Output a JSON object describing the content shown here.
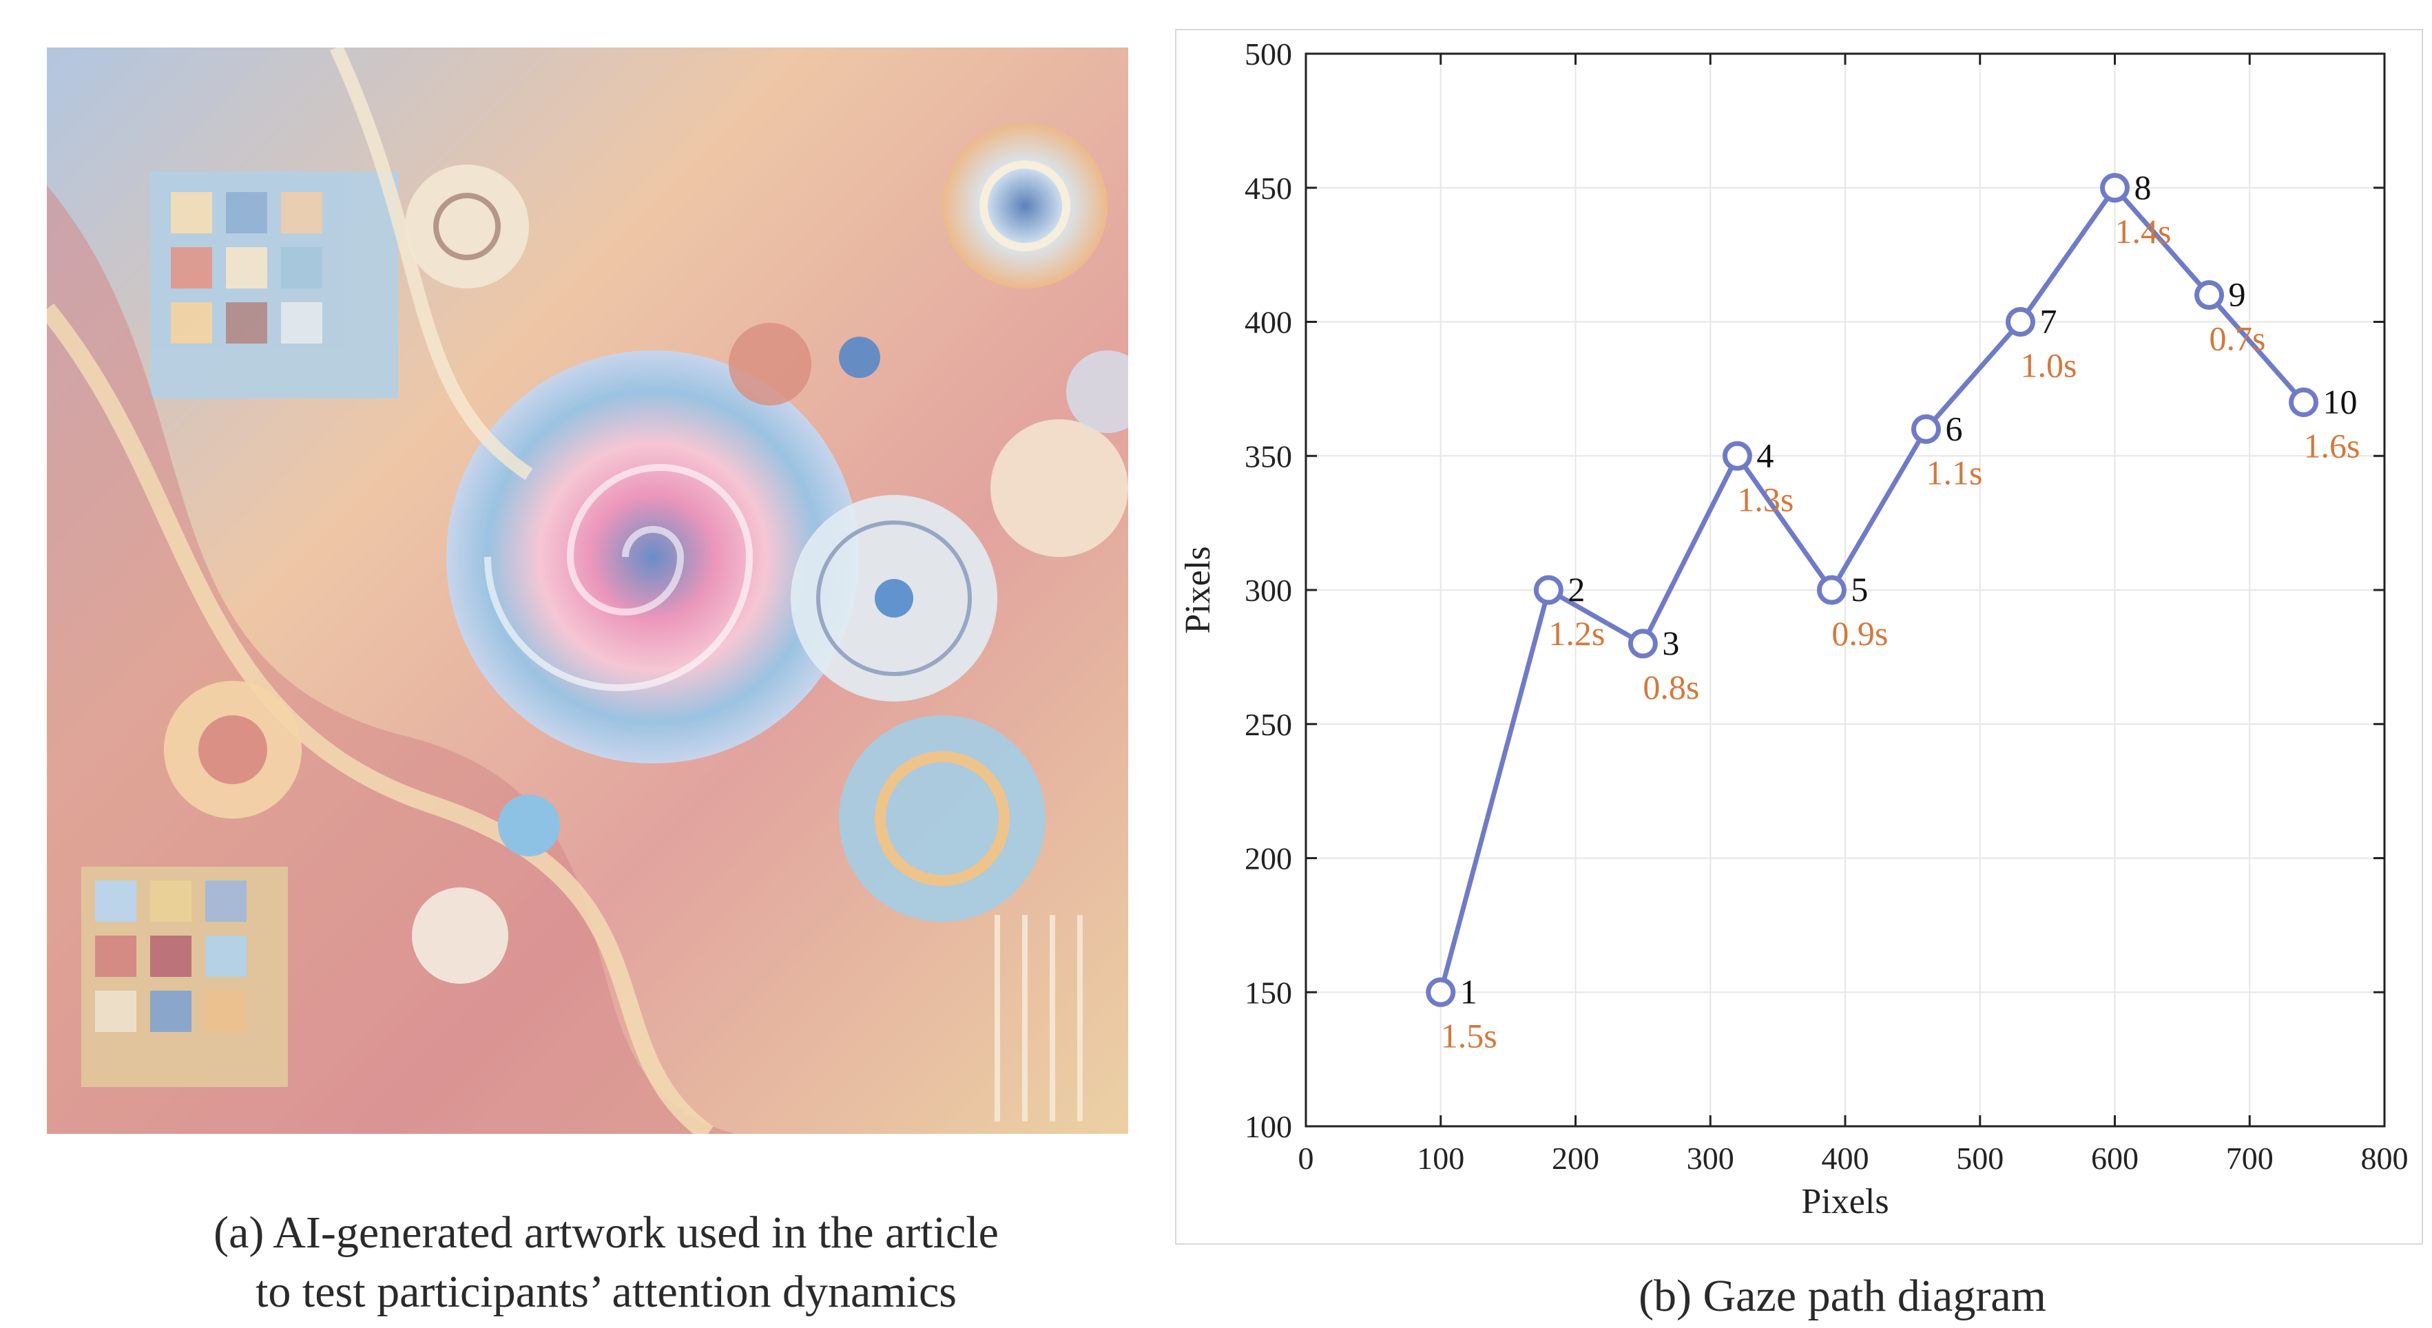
{
  "captions": {
    "a_line1": "(a) AI-generated artwork used in the article",
    "a_line2": "to test participants’ attention dynamics",
    "b": "(b) Gaze path diagram"
  },
  "colors": {
    "path": "#6f7bc6",
    "duration_text": "#d4783c",
    "grid": "#e6e6e6"
  },
  "chart_data": {
    "type": "line",
    "title": "",
    "xlabel": "Pixels",
    "ylabel": "Pixels",
    "xlim": [
      0,
      800
    ],
    "ylim": [
      100,
      500
    ],
    "xticks": [
      0,
      100,
      200,
      300,
      400,
      500,
      600,
      700,
      800
    ],
    "yticks": [
      100,
      150,
      200,
      250,
      300,
      350,
      400,
      450,
      500
    ],
    "grid": true,
    "marker": "circle",
    "points": [
      {
        "id": "1",
        "x": 100,
        "y": 150,
        "duration": "1.5s"
      },
      {
        "id": "2",
        "x": 180,
        "y": 300,
        "duration": "1.2s"
      },
      {
        "id": "3",
        "x": 250,
        "y": 280,
        "duration": "0.8s"
      },
      {
        "id": "4",
        "x": 320,
        "y": 350,
        "duration": "1.3s"
      },
      {
        "id": "5",
        "x": 390,
        "y": 300,
        "duration": "0.9s"
      },
      {
        "id": "6",
        "x": 460,
        "y": 360,
        "duration": "1.1s"
      },
      {
        "id": "7",
        "x": 530,
        "y": 400,
        "duration": "1.0s"
      },
      {
        "id": "8",
        "x": 600,
        "y": 450,
        "duration": "1.4s"
      },
      {
        "id": "9",
        "x": 670,
        "y": 410,
        "duration": "0.7s"
      },
      {
        "id": "10",
        "x": 740,
        "y": 370,
        "duration": "1.6s"
      }
    ]
  }
}
